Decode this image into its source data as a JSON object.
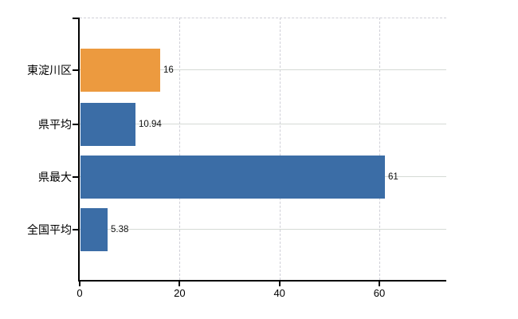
{
  "chart_data": {
    "type": "bar",
    "orientation": "horizontal",
    "title": "",
    "xlabel": "",
    "ylabel": "",
    "categories": [
      "東淀川区",
      "県平均",
      "県最大",
      "全国平均"
    ],
    "values": [
      16,
      10.94,
      61,
      5.38
    ],
    "value_labels": [
      "16",
      "10.94",
      "61",
      "5.38"
    ],
    "bar_colors": [
      "#EC9A3F",
      "#3B6DA6",
      "#3B6DA6",
      "#3B6DA6"
    ],
    "x_ticks": [
      0,
      20,
      40,
      60
    ],
    "x_tick_labels": [
      "0",
      "20",
      "40",
      "60"
    ],
    "xlim": [
      0,
      73.4
    ],
    "grid": true,
    "legend": null
  },
  "colors": {
    "bar_orange": "#EC9A3F",
    "bar_blue": "#3B6DA6",
    "axis": "#000000",
    "grid_vertical": "#cfcfd7",
    "grid_horizontal": "#d5dad5",
    "background": "#ffffff",
    "text": "#000000"
  }
}
